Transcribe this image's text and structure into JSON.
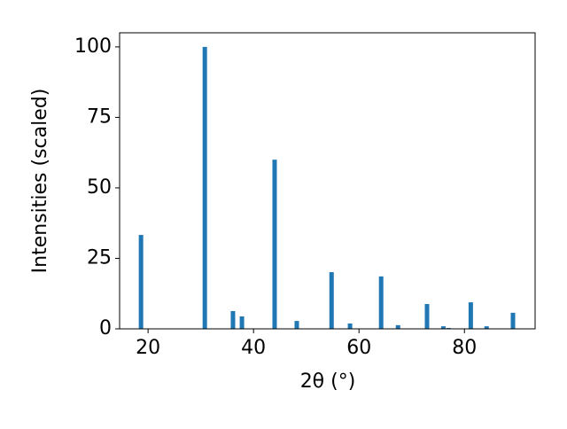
{
  "chart_data": {
    "type": "bar",
    "x_label": "2θ (°)",
    "y_label": "Intensities (scaled)",
    "x": [
      18.66,
      30.76,
      36.1,
      37.8,
      44.0,
      48.2,
      54.8,
      58.3,
      64.2,
      67.4,
      72.9,
      76.0,
      77.0,
      81.2,
      84.2,
      89.2
    ],
    "values": [
      33.3,
      100,
      6.3,
      4.4,
      60,
      2.8,
      20.1,
      1.9,
      18.6,
      1.3,
      8.8,
      0.9,
      0.3,
      9.4,
      0.9,
      5.7
    ],
    "color": "#1f77b4",
    "xlim": [
      14.6,
      93.4
    ],
    "xticks": [
      20,
      40,
      60,
      80
    ],
    "ylim": [
      0,
      105
    ],
    "yticks": [
      0,
      25,
      50,
      75,
      100
    ],
    "grid": false
  }
}
